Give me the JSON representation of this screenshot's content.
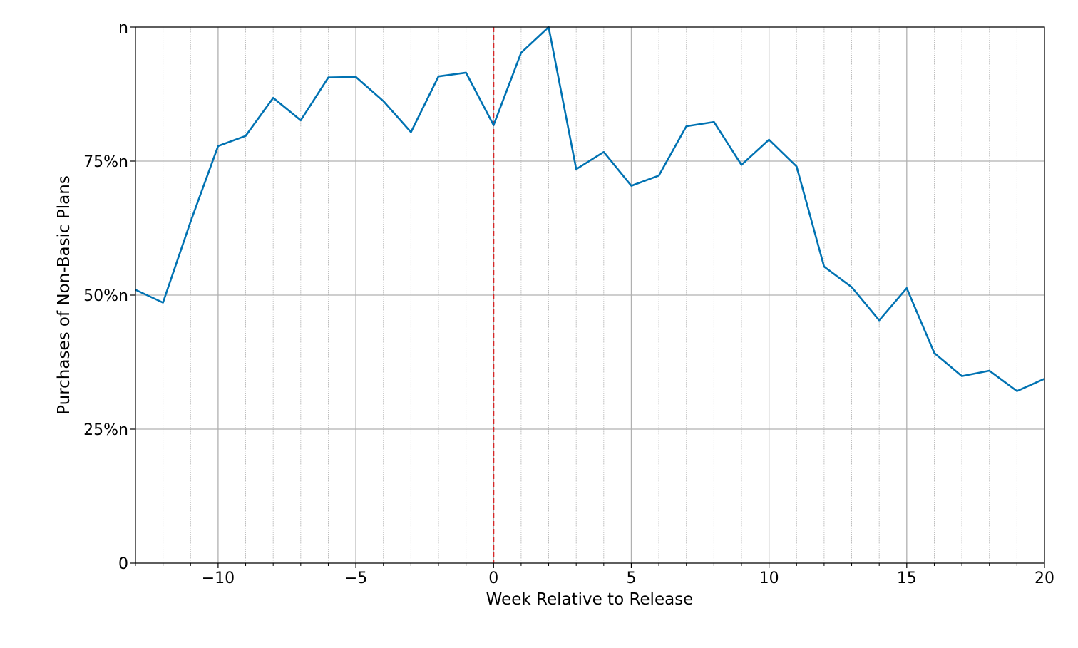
{
  "chart_data": {
    "type": "line",
    "xlabel": "Week Relative to Release",
    "ylabel": "Purchases of Non-Basic Plans",
    "xlim": [
      -13,
      20
    ],
    "ylim": [
      0,
      1
    ],
    "x_major_ticks": [
      -10,
      -5,
      0,
      5,
      10,
      15,
      20
    ],
    "x_tick_labels": [
      "−10",
      "−5",
      "0",
      "5",
      "10",
      "15",
      "20"
    ],
    "x_minor_step": 1,
    "y_ticks": [
      0,
      0.25,
      0.5,
      0.75,
      1
    ],
    "y_tick_labels": [
      "0",
      "25%n",
      "50%n",
      "75%n",
      "n"
    ],
    "grid": true,
    "reference_line": {
      "x": 0,
      "color": "#d62728",
      "style": "dashed"
    },
    "series": [
      {
        "color": "#0072b2",
        "x": [
          -13,
          -12,
          -11,
          -10,
          -9,
          -8,
          -7,
          -6,
          -5,
          -4,
          -3,
          -2,
          -1,
          0,
          1,
          2,
          3,
          4,
          5,
          6,
          7,
          8,
          9,
          10,
          11,
          12,
          13,
          14,
          15,
          16,
          17,
          18,
          19,
          20
        ],
        "y": [
          0.51,
          0.486,
          0.637,
          0.778,
          0.797,
          0.868,
          0.826,
          0.906,
          0.907,
          0.862,
          0.804,
          0.908,
          0.915,
          0.817,
          0.952,
          1.0,
          0.735,
          0.767,
          0.704,
          0.723,
          0.815,
          0.823,
          0.743,
          0.79,
          0.74,
          0.553,
          0.515,
          0.453,
          0.513,
          0.392,
          0.349,
          0.359,
          0.321,
          0.344
        ]
      }
    ]
  }
}
